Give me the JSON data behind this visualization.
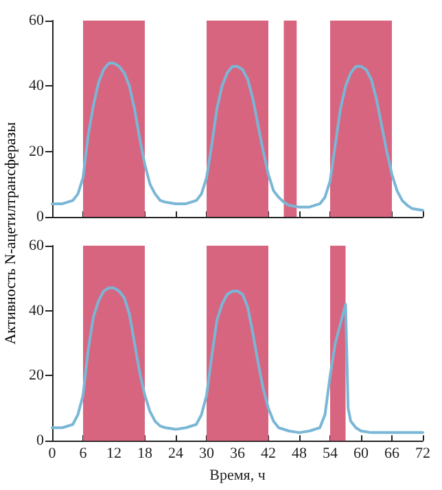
{
  "chart_data": [
    {
      "type": "line",
      "ylabel": "Активность N-ацетилтрансферазы",
      "xlim": [
        0,
        72
      ],
      "xticks": [
        0,
        6,
        12,
        18,
        24,
        30,
        36,
        42,
        48,
        54,
        60,
        66,
        72
      ],
      "ylim": [
        0,
        60
      ],
      "yticks": [
        0,
        20,
        40,
        60
      ],
      "tick_labels": "y",
      "grid": false,
      "marker": "none",
      "line_style": "solid",
      "series": [
        {
          "color": "#7ab6d6",
          "x": [
            0,
            2,
            4,
            5,
            6,
            7,
            8,
            9,
            10,
            11,
            12,
            13,
            14,
            15,
            16,
            17,
            18,
            19,
            20,
            21,
            22,
            24,
            26,
            28,
            29,
            30,
            31,
            32,
            33,
            34,
            35,
            36,
            37,
            38,
            39,
            40,
            41,
            42,
            43,
            44,
            45,
            46,
            48,
            50,
            52,
            53,
            54,
            55,
            56,
            57,
            58,
            59,
            60,
            61,
            62,
            63,
            64,
            65,
            66,
            67,
            68,
            69,
            70,
            72
          ],
          "values": [
            4,
            4,
            5,
            7,
            12,
            25,
            34,
            41,
            45,
            47,
            47,
            46,
            44,
            40,
            33,
            24,
            16,
            10,
            7,
            5,
            4.5,
            4,
            4,
            5,
            7,
            12,
            22,
            33,
            40,
            44,
            46,
            46,
            45,
            42,
            36,
            28,
            20,
            13,
            8,
            6,
            4.5,
            3.5,
            3,
            3,
            4,
            6,
            11,
            22,
            33,
            40,
            44,
            46,
            46,
            45,
            42,
            36,
            28,
            20,
            13,
            8,
            5,
            3.5,
            2.5,
            2
          ]
        }
      ],
      "bands": [
        {
          "axis": "x",
          "from": 6,
          "to": 18,
          "color": "#d8657f"
        },
        {
          "axis": "x",
          "from": 30,
          "to": 42,
          "color": "#d8657f"
        },
        {
          "axis": "x",
          "from": 45,
          "to": 47.5,
          "color": "#d8657f"
        },
        {
          "axis": "x",
          "from": 54,
          "to": 66,
          "color": "#d8657f"
        }
      ]
    },
    {
      "type": "line",
      "xlabel": "Время, ч",
      "xlim": [
        0,
        72
      ],
      "xticks": [
        0,
        6,
        12,
        18,
        24,
        30,
        36,
        42,
        48,
        54,
        60,
        66,
        72
      ],
      "ylim": [
        0,
        60
      ],
      "yticks": [
        0,
        20,
        40,
        60
      ],
      "grid": false,
      "marker": "none",
      "line_style": "solid",
      "series": [
        {
          "color": "#7ab6d6",
          "x": [
            0,
            2,
            4,
            5,
            6,
            7,
            8,
            9,
            10,
            11,
            12,
            13,
            14,
            15,
            16,
            17,
            18,
            19,
            20,
            21,
            22,
            24,
            26,
            28,
            29,
            30,
            31,
            32,
            33,
            34,
            35,
            36,
            37,
            38,
            39,
            40,
            41,
            42,
            43,
            44,
            46,
            48,
            50,
            52,
            53,
            54,
            55,
            56,
            57,
            57.5,
            58,
            59,
            60,
            62,
            64,
            66,
            68,
            70,
            72
          ],
          "values": [
            4,
            4,
            5,
            8,
            14,
            28,
            38,
            43,
            46,
            47,
            47,
            46,
            44,
            39,
            30,
            21,
            14,
            9,
            6,
            4.5,
            4,
            3.5,
            4,
            5,
            8,
            14,
            26,
            37,
            42,
            45,
            46,
            46,
            45,
            41,
            33,
            24,
            16,
            10,
            6,
            4,
            3,
            2.5,
            3,
            4,
            8,
            20,
            30,
            36,
            42,
            10,
            6,
            4,
            3,
            2.5,
            2.5,
            2.5,
            2.5,
            2.5,
            2.5
          ]
        }
      ],
      "bands": [
        {
          "axis": "x",
          "from": 6,
          "to": 18,
          "color": "#d8657f"
        },
        {
          "axis": "x",
          "from": 30,
          "to": 42,
          "color": "#d8657f"
        },
        {
          "axis": "x",
          "from": 54,
          "to": 57,
          "color": "#d8657f"
        }
      ]
    }
  ]
}
